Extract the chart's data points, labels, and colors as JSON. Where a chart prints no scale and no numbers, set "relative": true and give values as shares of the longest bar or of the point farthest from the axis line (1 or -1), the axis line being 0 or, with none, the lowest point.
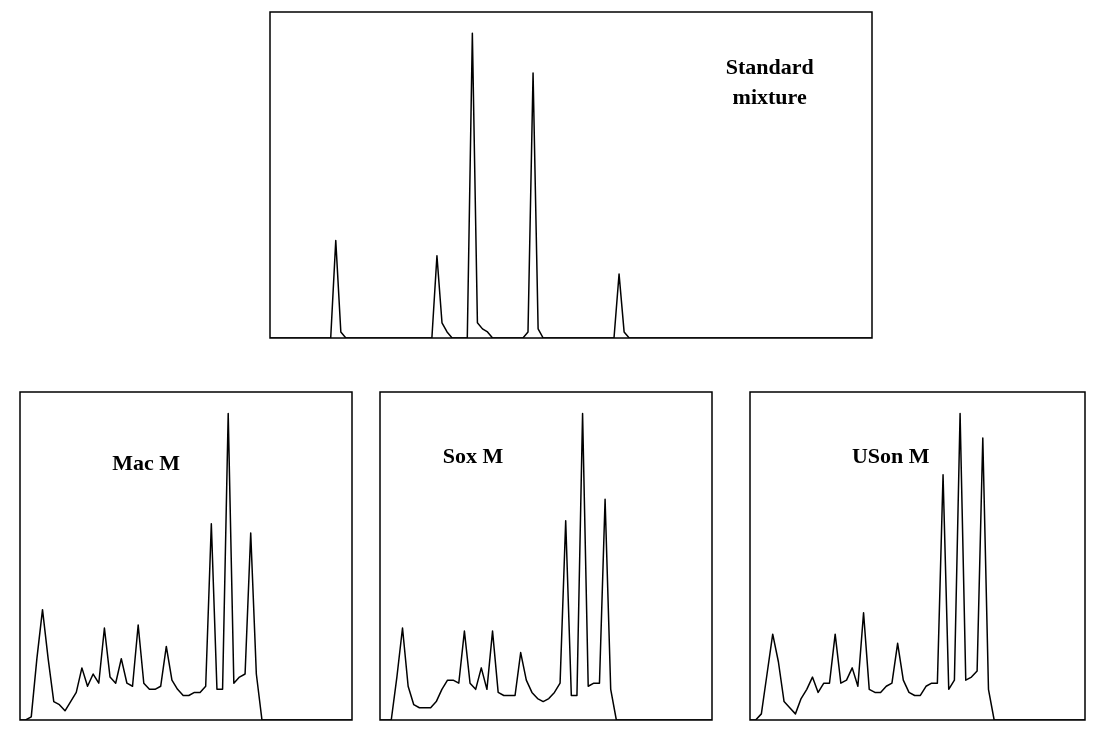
{
  "chart_data": [
    {
      "type": "line",
      "title": "Standard mixture",
      "relative": true,
      "color": "#000000",
      "categories": [
        null,
        null,
        null,
        null,
        null,
        null,
        null,
        null,
        null,
        null,
        null,
        null,
        null,
        null,
        null,
        null,
        null,
        null,
        null,
        null,
        null,
        null,
        null,
        null,
        null,
        null,
        null,
        null,
        null,
        null,
        null,
        null,
        null,
        null,
        null,
        null,
        null,
        null,
        null,
        null,
        null,
        null,
        null,
        null,
        null,
        null,
        null,
        null,
        null,
        null,
        null,
        null,
        null,
        null,
        null,
        null,
        null,
        null,
        null,
        null,
        null,
        null,
        null,
        null,
        null,
        null,
        null,
        null,
        null,
        null,
        null,
        null,
        null,
        null,
        null,
        null,
        null,
        null,
        null,
        null,
        null,
        null,
        null,
        null,
        null,
        null,
        null,
        null,
        null,
        null,
        null,
        null,
        null,
        null,
        null,
        null,
        null,
        null,
        null,
        null,
        null,
        null,
        null,
        null,
        null,
        null,
        null,
        null,
        null,
        null,
        null,
        null,
        null,
        null,
        null,
        null,
        null,
        null,
        null,
        null
      ],
      "values": [
        0,
        0,
        0,
        0,
        0,
        0,
        0,
        0,
        0,
        0,
        0,
        0,
        0,
        0.32,
        0.02,
        0,
        0,
        0,
        0,
        0,
        0,
        0,
        0,
        0,
        0,
        0,
        0,
        0,
        0,
        0,
        0,
        0,
        0,
        0.27,
        0.05,
        0.02,
        0,
        0,
        0,
        0,
        1,
        0.05,
        0.03,
        0.02,
        0,
        0,
        0,
        0,
        0,
        0,
        0,
        0.02,
        0.87,
        0.03,
        0,
        0,
        0,
        0,
        0,
        0,
        0,
        0,
        0,
        0,
        0,
        0,
        0,
        0,
        0,
        0.21,
        0.02,
        0,
        0,
        0,
        0,
        0,
        0,
        0,
        0,
        0,
        0,
        0,
        0,
        0,
        0,
        0,
        0,
        0,
        0,
        0,
        0,
        0,
        0,
        0,
        0,
        0,
        0,
        0,
        0,
        0,
        0,
        0,
        0,
        0,
        0,
        0,
        0,
        0,
        0,
        0,
        0,
        0,
        0,
        0,
        0,
        0,
        0,
        0,
        0,
        0
      ]
    },
    {
      "type": "line",
      "title": "Mac M",
      "relative": true,
      "color": "#000000",
      "categories": [
        null,
        null,
        null,
        null,
        null,
        null,
        null,
        null,
        null,
        null,
        null,
        null,
        null,
        null,
        null,
        null,
        null,
        null,
        null,
        null,
        null,
        null,
        null,
        null,
        null,
        null,
        null,
        null,
        null,
        null,
        null,
        null,
        null,
        null,
        null,
        null,
        null,
        null,
        null,
        null,
        null,
        null,
        null,
        null,
        null,
        null,
        null,
        null,
        null,
        null,
        null,
        null,
        null,
        null,
        null,
        null,
        null,
        null,
        null,
        null
      ],
      "values": [
        0,
        0,
        0.01,
        0.2,
        0.36,
        0.2,
        0.06,
        0.05,
        0.03,
        0.06,
        0.09,
        0.17,
        0.11,
        0.15,
        0.12,
        0.3,
        0.14,
        0.12,
        0.2,
        0.12,
        0.11,
        0.31,
        0.12,
        0.1,
        0.1,
        0.11,
        0.24,
        0.13,
        0.1,
        0.08,
        0.08,
        0.09,
        0.09,
        0.11,
        0.64,
        0.1,
        0.1,
        1,
        0.12,
        0.14,
        0.15,
        0.61,
        0.15,
        0,
        0,
        0,
        0,
        0,
        0,
        0,
        0,
        0,
        0,
        0,
        0,
        0,
        0,
        0,
        0,
        0
      ]
    },
    {
      "type": "line",
      "title": "Sox M",
      "relative": true,
      "color": "#000000",
      "categories": [
        null,
        null,
        null,
        null,
        null,
        null,
        null,
        null,
        null,
        null,
        null,
        null,
        null,
        null,
        null,
        null,
        null,
        null,
        null,
        null,
        null,
        null,
        null,
        null,
        null,
        null,
        null,
        null,
        null,
        null,
        null,
        null,
        null,
        null,
        null,
        null,
        null,
        null,
        null,
        null,
        null,
        null,
        null,
        null,
        null,
        null,
        null,
        null,
        null,
        null,
        null,
        null,
        null,
        null,
        null,
        null,
        null,
        null,
        null,
        null
      ],
      "values": [
        0,
        0,
        0,
        0.14,
        0.3,
        0.11,
        0.05,
        0.04,
        0.04,
        0.04,
        0.06,
        0.1,
        0.13,
        0.13,
        0.12,
        0.29,
        0.12,
        0.1,
        0.17,
        0.1,
        0.29,
        0.09,
        0.08,
        0.08,
        0.08,
        0.22,
        0.13,
        0.09,
        0.07,
        0.06,
        0.07,
        0.09,
        0.12,
        0.65,
        0.08,
        0.08,
        1,
        0.11,
        0.12,
        0.12,
        0.72,
        0.1,
        0,
        0,
        0,
        0,
        0,
        0,
        0,
        0,
        0,
        0,
        0,
        0,
        0,
        0,
        0,
        0,
        0,
        0
      ]
    },
    {
      "type": "line",
      "title": "USon M",
      "relative": true,
      "color": "#000000",
      "categories": [
        null,
        null,
        null,
        null,
        null,
        null,
        null,
        null,
        null,
        null,
        null,
        null,
        null,
        null,
        null,
        null,
        null,
        null,
        null,
        null,
        null,
        null,
        null,
        null,
        null,
        null,
        null,
        null,
        null,
        null,
        null,
        null,
        null,
        null,
        null,
        null,
        null,
        null,
        null,
        null,
        null,
        null,
        null,
        null,
        null,
        null,
        null,
        null,
        null,
        null,
        null,
        null,
        null,
        null,
        null,
        null,
        null,
        null,
        null,
        null
      ],
      "values": [
        0,
        0,
        0.02,
        0.15,
        0.28,
        0.19,
        0.06,
        0.04,
        0.02,
        0.07,
        0.1,
        0.14,
        0.09,
        0.12,
        0.12,
        0.28,
        0.12,
        0.13,
        0.17,
        0.11,
        0.35,
        0.1,
        0.09,
        0.09,
        0.11,
        0.12,
        0.25,
        0.13,
        0.09,
        0.08,
        0.08,
        0.11,
        0.12,
        0.12,
        0.8,
        0.1,
        0.13,
        1,
        0.13,
        0.14,
        0.16,
        0.92,
        0.1,
        0,
        0,
        0,
        0,
        0,
        0,
        0,
        0,
        0,
        0,
        0,
        0,
        0,
        0,
        0,
        0,
        0
      ]
    }
  ]
}
